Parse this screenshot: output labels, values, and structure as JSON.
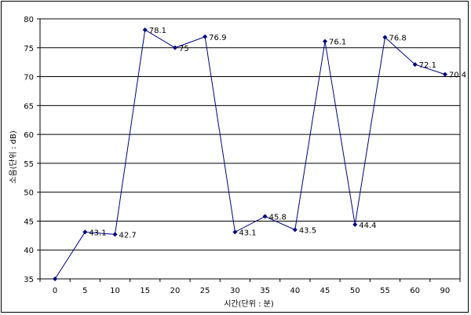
{
  "chart_data": {
    "type": "line",
    "title": "",
    "xlabel": "시간(단위 : 분)",
    "ylabel": "소음(단위 : dB)",
    "categories": [
      "0",
      "5",
      "10",
      "15",
      "20",
      "25",
      "30",
      "35",
      "40",
      "45",
      "50",
      "55",
      "60",
      "90"
    ],
    "ylim": [
      35,
      80
    ],
    "ytick_step": 5,
    "grid": true,
    "legend": "none",
    "series": [
      {
        "name": "",
        "color": "#000080",
        "values": [
          35,
          43.1,
          42.7,
          78.1,
          75,
          76.9,
          43.1,
          45.8,
          43.5,
          76.1,
          44.4,
          76.8,
          72.1,
          70.4
        ],
        "labels": [
          "",
          "43.1",
          "42.7",
          "78.1",
          "75",
          "76.9",
          "43.1",
          "45.8",
          "43.5",
          "76.1",
          "44.4",
          "76.8",
          "72.1",
          "70.4"
        ]
      }
    ]
  }
}
